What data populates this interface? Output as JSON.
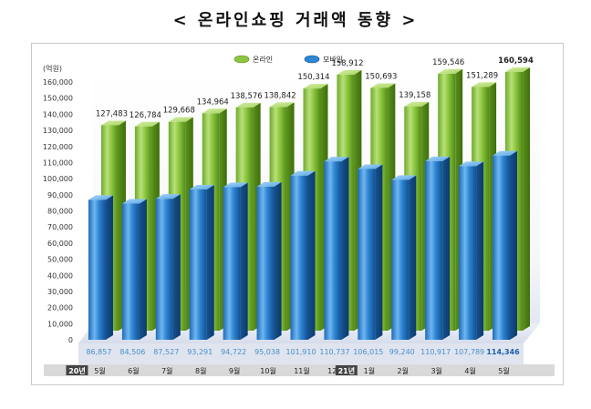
{
  "title": "< 온라인쇼핑 거래액 동향 >",
  "chart_data": {
    "type": "bar",
    "unit_label": "(억원)",
    "categories": [
      "5월",
      "6월",
      "7월",
      "8월",
      "9월",
      "10월",
      "11월",
      "12월",
      "1월",
      "2월",
      "3월",
      "4월",
      "5월"
    ],
    "year_markers": [
      {
        "index": 0,
        "label": "20년"
      },
      {
        "index": 8,
        "label": "21년"
      }
    ],
    "ylim": [
      0,
      160000
    ],
    "yticks": [
      "0",
      "10,000",
      "20,000",
      "30,000",
      "40,000",
      "50,000",
      "60,000",
      "70,000",
      "80,000",
      "90,000",
      "100,000",
      "110,000",
      "120,000",
      "130,000",
      "140,000",
      "150,000",
      "160,000"
    ],
    "series": [
      {
        "name": "온라인",
        "color": "#8cc63e",
        "values": [
          127483,
          126784,
          129668,
          134964,
          138576,
          138842,
          150314,
          158912,
          150693,
          139158,
          159546,
          151289,
          160594
        ],
        "labels": [
          "127,483",
          "126,784",
          "129,668",
          "134,964",
          "138,576",
          "138,842",
          "150,314",
          "158,912",
          "150,693",
          "139,158",
          "159,546",
          "151,289",
          "160,594"
        ]
      },
      {
        "name": "모바일",
        "color": "#2e86d4",
        "values": [
          86857,
          84506,
          87527,
          93291,
          94722,
          95038,
          101910,
          110737,
          106015,
          99240,
          110917,
          107789,
          114346
        ],
        "labels": [
          "86,857",
          "84,506",
          "87,527",
          "93,291",
          "94,722",
          "95,038",
          "101,910",
          "110,737",
          "106,015",
          "99,240",
          "110,917",
          "107,789",
          "114,346"
        ]
      }
    ],
    "legend_position": "top-center",
    "grid": false
  }
}
